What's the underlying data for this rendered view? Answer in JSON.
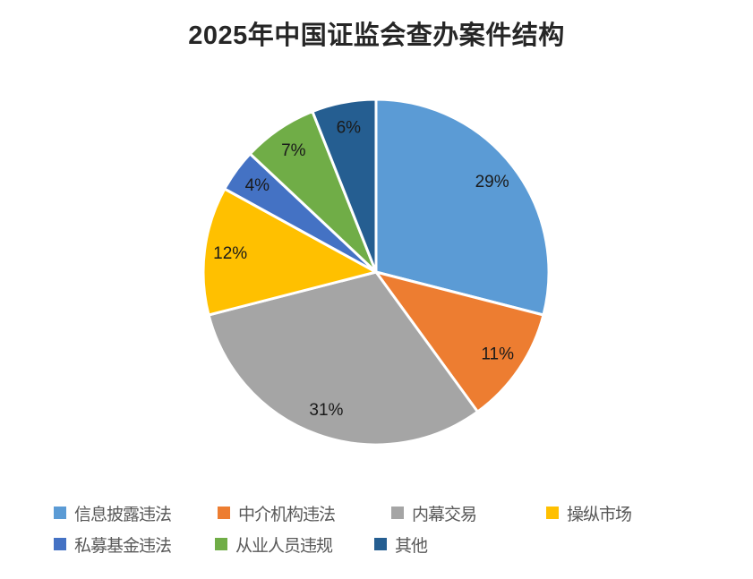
{
  "title": "2025年中国证监会查办案件结构",
  "chart_data": {
    "type": "pie",
    "title": "2025年中国证监会查办案件结构",
    "start_angle_deg": 0,
    "direction": "clockwise",
    "legend_position": "bottom",
    "label_format": "percent",
    "slice_border_color": "#ffffff",
    "label_color": "#1a1a1a",
    "title_color": "#262626",
    "legend_text_color": "#595959",
    "series": [
      {
        "name": "信息披露违法",
        "value": 29,
        "label": "29%",
        "color": "#5B9BD5"
      },
      {
        "name": "中介机构违法",
        "value": 11,
        "label": "11%",
        "color": "#ED7D31"
      },
      {
        "name": "内幕交易",
        "value": 31,
        "label": "31%",
        "color": "#A5A5A5"
      },
      {
        "name": "操纵市场",
        "value": 12,
        "label": "12%",
        "color": "#FFC000"
      },
      {
        "name": "私募基金违法",
        "value": 4,
        "label": "4%",
        "color": "#4472C4"
      },
      {
        "name": "从业人员违规",
        "value": 7,
        "label": "7%",
        "color": "#70AD47"
      },
      {
        "name": "其他",
        "value": 6,
        "label": "6%",
        "color": "#255E91"
      }
    ]
  }
}
